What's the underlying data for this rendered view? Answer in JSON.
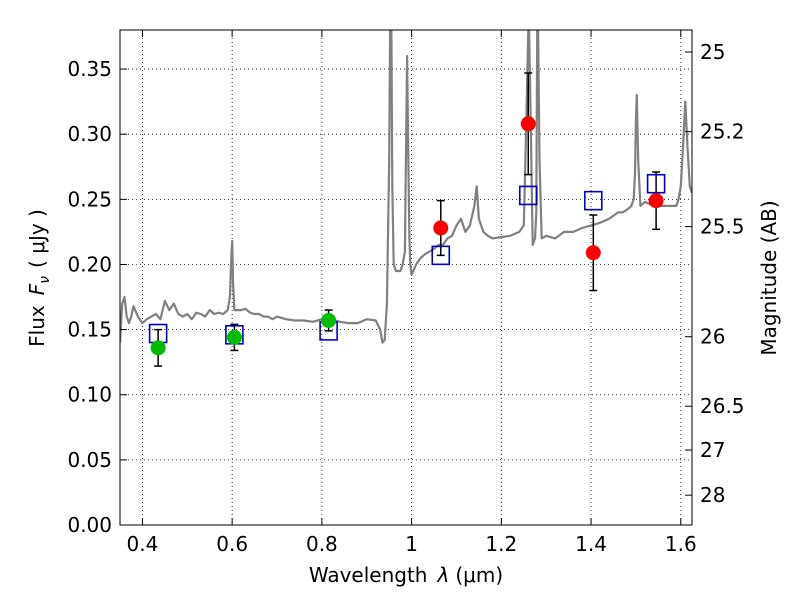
{
  "chart_data": {
    "type": "scatter",
    "xlabel": "Wavelength",
    "xlabel_symbol": "λ",
    "xlabel_unit": "(μm)",
    "ylabel": "Flux",
    "ylabel_symbol": "F",
    "ylabel_subscript": "ν",
    "ylabel_unit": "( μJy )",
    "y2label": "Magnitude (AB)",
    "xlim": [
      0.35,
      1.625
    ],
    "ylim": [
      0.0,
      0.38
    ],
    "grid": true,
    "grid_style": "dotted",
    "x_ticks": [
      0.4,
      0.6,
      0.8,
      1.0,
      1.2,
      1.4,
      1.6
    ],
    "x_tick_labels": [
      "0.4",
      "0.6",
      "0.8",
      "1",
      "1.2",
      "1.4",
      "1.6"
    ],
    "y_ticks": [
      0.0,
      0.05,
      0.1,
      0.15,
      0.2,
      0.25,
      0.3,
      0.35
    ],
    "y_tick_labels": [
      "0.00",
      "0.05",
      "0.10",
      "0.15",
      "0.20",
      "0.25",
      "0.30",
      "0.35"
    ],
    "y2_ticks": [
      25,
      25.2,
      25.5,
      26,
      26.5,
      27,
      28
    ],
    "y2_tick_labels": [
      "25",
      "25.2",
      "25.5",
      "26",
      "26.5",
      "27",
      "28"
    ],
    "colors": {
      "spectrum": "#808080",
      "optical_points": "#00bb00",
      "nir_points": "#ff0000",
      "model_squares": "#0000cc",
      "error_bars": "#000000"
    },
    "spectrum": {
      "x": [
        0.35,
        0.355,
        0.36,
        0.365,
        0.37,
        0.375,
        0.38,
        0.39,
        0.4,
        0.41,
        0.42,
        0.43,
        0.44,
        0.45,
        0.46,
        0.47,
        0.48,
        0.49,
        0.5,
        0.51,
        0.52,
        0.53,
        0.54,
        0.55,
        0.56,
        0.57,
        0.58,
        0.59,
        0.595,
        0.598,
        0.6,
        0.602,
        0.605,
        0.61,
        0.62,
        0.63,
        0.64,
        0.65,
        0.66,
        0.67,
        0.68,
        0.69,
        0.7,
        0.72,
        0.74,
        0.76,
        0.78,
        0.8,
        0.82,
        0.84,
        0.86,
        0.88,
        0.9,
        0.92,
        0.93,
        0.935,
        0.94,
        0.945,
        0.95,
        0.952,
        0.954,
        0.955,
        0.957,
        0.96,
        0.965,
        0.97,
        0.975,
        0.98,
        0.985,
        0.99,
        0.992,
        0.995,
        0.997,
        1.0,
        1.01,
        1.02,
        1.03,
        1.04,
        1.05,
        1.06,
        1.07,
        1.08,
        1.09,
        1.1,
        1.11,
        1.12,
        1.13,
        1.14,
        1.145,
        1.15,
        1.16,
        1.17,
        1.18,
        1.2,
        1.22,
        1.24,
        1.25,
        1.255,
        1.26,
        1.262,
        1.265,
        1.27,
        1.275,
        1.278,
        1.28,
        1.282,
        1.285,
        1.29,
        1.3,
        1.32,
        1.34,
        1.36,
        1.38,
        1.4,
        1.42,
        1.44,
        1.46,
        1.47,
        1.48,
        1.49,
        1.495,
        1.498,
        1.5,
        1.502,
        1.505,
        1.51,
        1.52,
        1.54,
        1.56,
        1.58,
        1.59,
        1.595,
        1.6,
        1.605,
        1.61,
        1.615,
        1.62,
        1.625
      ],
      "y": [
        0.14,
        0.17,
        0.175,
        0.16,
        0.155,
        0.16,
        0.168,
        0.16,
        0.155,
        0.158,
        0.16,
        0.162,
        0.158,
        0.172,
        0.165,
        0.17,
        0.162,
        0.16,
        0.162,
        0.158,
        0.163,
        0.162,
        0.16,
        0.165,
        0.162,
        0.163,
        0.162,
        0.165,
        0.175,
        0.205,
        0.218,
        0.185,
        0.165,
        0.165,
        0.165,
        0.166,
        0.163,
        0.162,
        0.162,
        0.16,
        0.16,
        0.158,
        0.16,
        0.158,
        0.157,
        0.157,
        0.156,
        0.158,
        0.158,
        0.156,
        0.155,
        0.155,
        0.158,
        0.157,
        0.15,
        0.14,
        0.142,
        0.17,
        0.28,
        0.38,
        0.38,
        0.38,
        0.26,
        0.2,
        0.195,
        0.195,
        0.195,
        0.2,
        0.21,
        0.36,
        0.3,
        0.22,
        0.2,
        0.192,
        0.2,
        0.205,
        0.208,
        0.21,
        0.212,
        0.215,
        0.215,
        0.22,
        0.222,
        0.23,
        0.235,
        0.225,
        0.23,
        0.245,
        0.26,
        0.235,
        0.225,
        0.222,
        0.22,
        0.221,
        0.222,
        0.225,
        0.23,
        0.3,
        0.38,
        0.38,
        0.32,
        0.215,
        0.22,
        0.24,
        0.38,
        0.38,
        0.28,
        0.22,
        0.222,
        0.22,
        0.225,
        0.225,
        0.228,
        0.23,
        0.232,
        0.235,
        0.24,
        0.24,
        0.242,
        0.245,
        0.25,
        0.27,
        0.31,
        0.33,
        0.28,
        0.245,
        0.248,
        0.245,
        0.245,
        0.245,
        0.245,
        0.25,
        0.26,
        0.29,
        0.325,
        0.29,
        0.26,
        0.255
      ]
    },
    "optical_points": {
      "x": [
        0.435,
        0.605,
        0.815
      ],
      "y": [
        0.136,
        0.144,
        0.157
      ],
      "yerr": [
        0.014,
        0.01,
        0.008
      ]
    },
    "nir_points": {
      "x": [
        1.065,
        1.26,
        1.405,
        1.545
      ],
      "y": [
        0.228,
        0.308,
        0.209,
        0.249
      ],
      "yerr": [
        0.021,
        0.039,
        0.029,
        0.022
      ]
    },
    "model_squares": {
      "x": [
        0.435,
        0.605,
        0.815,
        1.065,
        1.26,
        1.405,
        1.545
      ],
      "y": [
        0.147,
        0.146,
        0.149,
        0.207,
        0.253,
        0.249,
        0.262
      ]
    }
  }
}
